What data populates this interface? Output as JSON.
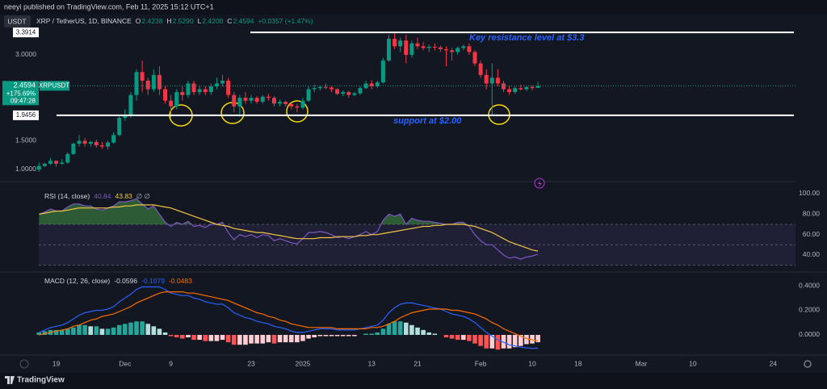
{
  "header": {
    "publisher": "neeyi published on TradingView.com, Feb 11, 2025 15:12 UTC+1",
    "currency": "USDT",
    "footer": "TradingView"
  },
  "chart_data": [
    {
      "type": "candlestick",
      "title": "XRP / TetherUS, 1D, BINANCE",
      "ohlc_legend": [
        [
          "O",
          "2.4238"
        ],
        [
          "H",
          "2.5290"
        ],
        [
          "L",
          "2.4200"
        ],
        [
          "C",
          "2.4594"
        ]
      ],
      "change": "+0.0357 (+1.47%)",
      "symbol": "XRPUSDT",
      "tag_change": "+175.69%",
      "tag_countdown": "09:47:28",
      "annotations": [
        "Key resistance level at $3.3",
        "support at $2.00"
      ],
      "levels": [
        3.3914,
        1.9456
      ],
      "up_color": "#089981",
      "down_color": "#f23645",
      "xlim": [
        -21.8,
        116.9
      ],
      "xticks": [
        {
          "value": -12,
          "label": "19"
        },
        {
          "value": 0,
          "label": "Dec"
        },
        {
          "value": 8,
          "label": "9"
        },
        {
          "value": 22,
          "label": "23"
        },
        {
          "value": 31,
          "label": "2025"
        },
        {
          "value": 43,
          "label": "13"
        },
        {
          "value": 51,
          "label": "21"
        },
        {
          "value": 62,
          "label": "Feb"
        },
        {
          "value": 71,
          "label": "10"
        },
        {
          "value": 79,
          "label": "18"
        },
        {
          "value": 90,
          "label": "Mar"
        },
        {
          "value": 99,
          "label": "10"
        },
        {
          "value": 113,
          "label": "24"
        }
      ],
      "ylim": [
        0.887,
        3.563
      ],
      "yticks": [
        {
          "value": 3,
          "label": "3.0000"
        },
        {
          "value": 1.5,
          "label": "1.5000"
        },
        {
          "value": 1,
          "label": "1.0000"
        }
      ],
      "x": [
        -15,
        -14,
        -13,
        -12,
        -11,
        -10,
        -9,
        -8,
        -7,
        -6,
        -5,
        -4,
        -3,
        -2,
        -1,
        0,
        1,
        2,
        3,
        4,
        5,
        6,
        7,
        8,
        9,
        10,
        11,
        12,
        13,
        14,
        15,
        16,
        17,
        18,
        19,
        20,
        21,
        22,
        23,
        24,
        25,
        26,
        27,
        28,
        29,
        30,
        31,
        32,
        33,
        34,
        35,
        36,
        37,
        38,
        39,
        40,
        41,
        42,
        43,
        44,
        45,
        46,
        47,
        48,
        49,
        50,
        51,
        52,
        53,
        54,
        55,
        56,
        57,
        58,
        59,
        60,
        61,
        62,
        63,
        64,
        65,
        66,
        67,
        68,
        69,
        70,
        71,
        72
      ],
      "ohlc": [
        [
          1.0,
          1.12,
          0.96,
          1.06
        ],
        [
          1.06,
          1.12,
          1.04,
          1.1
        ],
        [
          1.1,
          1.2,
          1.08,
          1.15
        ],
        [
          1.15,
          1.16,
          1.05,
          1.1
        ],
        [
          1.1,
          1.18,
          1.08,
          1.12
        ],
        [
          1.12,
          1.3,
          1.1,
          1.27
        ],
        [
          1.27,
          1.47,
          1.25,
          1.45
        ],
        [
          1.45,
          1.6,
          1.4,
          1.5
        ],
        [
          1.5,
          1.55,
          1.4,
          1.45
        ],
        [
          1.45,
          1.5,
          1.4,
          1.48
        ],
        [
          1.48,
          1.52,
          1.38,
          1.42
        ],
        [
          1.42,
          1.48,
          1.36,
          1.4
        ],
        [
          1.4,
          1.5,
          1.35,
          1.47
        ],
        [
          1.47,
          1.65,
          1.45,
          1.6
        ],
        [
          1.6,
          1.95,
          1.58,
          1.9
        ],
        [
          1.9,
          2.05,
          1.85,
          1.95
        ],
        [
          1.95,
          2.35,
          1.9,
          2.3
        ],
        [
          2.3,
          2.75,
          2.2,
          2.7
        ],
        [
          2.7,
          2.9,
          2.35,
          2.55
        ],
        [
          2.55,
          2.6,
          2.3,
          2.4
        ],
        [
          2.4,
          2.75,
          2.35,
          2.65
        ],
        [
          2.65,
          2.8,
          2.3,
          2.4
        ],
        [
          2.4,
          2.45,
          2.15,
          2.2
        ],
        [
          2.2,
          2.3,
          1.9,
          2.1
        ],
        [
          2.1,
          2.4,
          2.05,
          2.35
        ],
        [
          2.35,
          2.45,
          2.2,
          2.3
        ],
        [
          2.3,
          2.55,
          2.25,
          2.5
        ],
        [
          2.5,
          2.55,
          2.3,
          2.35
        ],
        [
          2.35,
          2.45,
          2.3,
          2.4
        ],
        [
          2.4,
          2.45,
          2.3,
          2.35
        ],
        [
          2.35,
          2.5,
          2.3,
          2.45
        ],
        [
          2.45,
          2.6,
          2.4,
          2.5
        ],
        [
          2.5,
          2.65,
          2.45,
          2.55
        ],
        [
          2.55,
          2.6,
          2.25,
          2.3
        ],
        [
          2.3,
          2.35,
          2.0,
          2.1
        ],
        [
          2.1,
          2.3,
          1.92,
          2.25
        ],
        [
          2.25,
          2.35,
          2.15,
          2.2
        ],
        [
          2.2,
          2.3,
          2.15,
          2.25
        ],
        [
          2.25,
          2.28,
          2.15,
          2.18
        ],
        [
          2.18,
          2.3,
          2.15,
          2.27
        ],
        [
          2.27,
          2.32,
          2.2,
          2.25
        ],
        [
          2.25,
          2.28,
          2.1,
          2.15
        ],
        [
          2.15,
          2.22,
          2.1,
          2.18
        ],
        [
          2.18,
          2.2,
          2.1,
          2.14
        ],
        [
          2.14,
          2.16,
          2.05,
          2.1
        ],
        [
          2.1,
          2.15,
          2.0,
          2.08
        ],
        [
          2.08,
          2.25,
          2.05,
          2.2
        ],
        [
          2.2,
          2.45,
          2.18,
          2.4
        ],
        [
          2.4,
          2.48,
          2.35,
          2.42
        ],
        [
          2.42,
          2.46,
          2.38,
          2.44
        ],
        [
          2.44,
          2.5,
          2.4,
          2.43
        ],
        [
          2.43,
          2.45,
          2.35,
          2.4
        ],
        [
          2.4,
          2.42,
          2.3,
          2.32
        ],
        [
          2.32,
          2.38,
          2.28,
          2.35
        ],
        [
          2.35,
          2.37,
          2.25,
          2.3
        ],
        [
          2.3,
          2.35,
          2.28,
          2.33
        ],
        [
          2.33,
          2.45,
          2.3,
          2.42
        ],
        [
          2.42,
          2.55,
          2.4,
          2.5
        ],
        [
          2.5,
          2.56,
          2.4,
          2.45
        ],
        [
          2.45,
          2.55,
          2.42,
          2.52
        ],
        [
          2.52,
          2.95,
          2.5,
          2.9
        ],
        [
          2.9,
          3.35,
          2.88,
          3.28
        ],
        [
          3.28,
          3.4,
          3.1,
          3.15
        ],
        [
          3.15,
          3.3,
          3.05,
          3.25
        ],
        [
          3.25,
          3.35,
          2.85,
          3.0
        ],
        [
          3.0,
          3.25,
          2.95,
          3.2
        ],
        [
          3.2,
          3.3,
          3.1,
          3.15
        ],
        [
          3.15,
          3.22,
          3.08,
          3.12
        ],
        [
          3.12,
          3.18,
          3.05,
          3.14
        ],
        [
          3.14,
          3.2,
          3.08,
          3.13
        ],
        [
          3.13,
          3.16,
          3.05,
          3.1
        ],
        [
          3.1,
          3.15,
          2.8,
          3.08
        ],
        [
          3.08,
          3.12,
          2.9,
          3.05
        ],
        [
          3.05,
          3.15,
          3.0,
          3.12
        ],
        [
          3.12,
          3.18,
          3.08,
          3.15
        ],
        [
          3.15,
          3.2,
          3.0,
          3.05
        ],
        [
          3.05,
          3.08,
          2.8,
          2.85
        ],
        [
          2.85,
          2.9,
          2.6,
          2.65
        ],
        [
          2.65,
          2.75,
          2.4,
          2.5
        ],
        [
          2.5,
          2.85,
          1.95,
          2.6
        ],
        [
          2.6,
          2.75,
          2.45,
          2.5
        ],
        [
          2.5,
          2.55,
          2.35,
          2.4
        ],
        [
          2.4,
          2.45,
          2.3,
          2.35
        ],
        [
          2.35,
          2.45,
          2.32,
          2.42
        ],
        [
          2.42,
          2.48,
          2.38,
          2.4
        ],
        [
          2.4,
          2.45,
          2.37,
          2.44
        ],
        [
          2.44,
          2.47,
          2.38,
          2.42
        ],
        [
          2.4238,
          2.529,
          2.42,
          2.4594
        ]
      ]
    },
    {
      "type": "line",
      "title": "RSI (14, close)",
      "na_label": "∅ ∅",
      "ylim": [
        25,
        106.3
      ],
      "yticks": [
        {
          "value": 100,
          "label": "100.00"
        },
        {
          "value": 80,
          "label": "80.00"
        },
        {
          "value": 60,
          "label": "60.00"
        },
        {
          "value": 40,
          "label": "40.00"
        }
      ],
      "levels": [
        70,
        50,
        30
      ],
      "band_color": "#7e57c2",
      "overbought_color": "#4caf50",
      "series": [
        {
          "color": "#7e57c2",
          "values": [
            80,
            82,
            85,
            83,
            83,
            87,
            90,
            90,
            88,
            88,
            85,
            84,
            86,
            88,
            92,
            92,
            93,
            95,
            90,
            85,
            88,
            80,
            72,
            68,
            72,
            70,
            73,
            68,
            69,
            67,
            70,
            70,
            72,
            62,
            55,
            60,
            58,
            60,
            57,
            60,
            59,
            54,
            56,
            54,
            52,
            51,
            56,
            62,
            62,
            63,
            62,
            60,
            57,
            58,
            56,
            58,
            60,
            63,
            60,
            63,
            74,
            80,
            78,
            80,
            70,
            76,
            74,
            73,
            73,
            72,
            71,
            70,
            70,
            72,
            72,
            68,
            60,
            54,
            50,
            50,
            45,
            40,
            37,
            38,
            36,
            38,
            39,
            40.84
          ]
        },
        {
          "color": "#f5c542",
          "values": [
            80,
            81,
            82,
            83,
            83,
            84,
            85,
            86,
            86,
            86,
            86,
            86,
            86,
            87,
            87,
            88,
            88,
            89,
            89,
            89,
            89,
            88,
            87,
            86,
            84,
            82,
            80,
            78,
            76,
            74,
            72,
            70,
            69,
            68,
            66,
            65,
            64,
            63,
            62,
            62,
            61,
            60,
            59,
            58,
            57,
            56,
            56,
            56,
            56,
            57,
            57,
            57,
            58,
            58,
            58,
            58,
            59,
            59,
            60,
            60,
            61,
            62,
            63,
            64,
            65,
            66,
            67,
            68,
            68,
            69,
            69,
            70,
            70,
            70,
            70,
            69,
            68,
            66,
            64,
            62,
            59,
            56,
            53,
            51,
            49,
            47,
            45,
            43.83
          ]
        }
      ]
    },
    {
      "type": "macd",
      "title": "MACD (12, 26, close)",
      "ylim": [
        -0.138,
        0.492
      ],
      "yticks": [
        {
          "value": 0.4,
          "label": "0.4000"
        },
        {
          "value": 0.2,
          "label": "0.2000"
        },
        {
          "value": 0,
          "label": "0.0000"
        }
      ],
      "histogram_colors": [
        "#26a69a",
        "#b2dfdb",
        "#ff5252",
        "#ffcdd2"
      ],
      "histogram": [
        0.02,
        0.03,
        0.04,
        0.04,
        0.04,
        0.05,
        0.06,
        0.08,
        0.08,
        0.07,
        0.07,
        0.05,
        0.05,
        0.06,
        0.08,
        0.09,
        0.1,
        0.11,
        0.11,
        0.09,
        0.07,
        0.05,
        0.02,
        -0.01,
        -0.02,
        -0.03,
        -0.02,
        -0.04,
        -0.04,
        -0.05,
        -0.05,
        -0.05,
        -0.04,
        -0.06,
        -0.08,
        -0.08,
        -0.08,
        -0.07,
        -0.07,
        -0.07,
        -0.06,
        -0.07,
        -0.06,
        -0.06,
        -0.06,
        -0.06,
        -0.05,
        -0.03,
        -0.02,
        -0.01,
        -0.01,
        -0.01,
        -0.01,
        -0.01,
        -0.01,
        -0.01,
        0,
        0.01,
        0.01,
        0.02,
        0.05,
        0.09,
        0.11,
        0.11,
        0.1,
        0.08,
        0.06,
        0.04,
        0.02,
        0.01,
        0,
        -0.02,
        -0.03,
        -0.04,
        -0.04,
        -0.05,
        -0.07,
        -0.09,
        -0.11,
        -0.11,
        -0.12,
        -0.11,
        -0.11,
        -0.1,
        -0.09,
        -0.075,
        -0.07,
        -0.0596
      ],
      "series": [
        {
          "color": "#2962ff",
          "values": [
            0.02,
            0.04,
            0.06,
            0.07,
            0.08,
            0.1,
            0.13,
            0.16,
            0.18,
            0.19,
            0.2,
            0.2,
            0.21,
            0.23,
            0.27,
            0.3,
            0.33,
            0.37,
            0.39,
            0.39,
            0.39,
            0.39,
            0.37,
            0.34,
            0.33,
            0.32,
            0.32,
            0.3,
            0.29,
            0.27,
            0.26,
            0.25,
            0.25,
            0.22,
            0.18,
            0.16,
            0.14,
            0.13,
            0.11,
            0.1,
            0.09,
            0.07,
            0.06,
            0.05,
            0.03,
            0.02,
            0.02,
            0.03,
            0.04,
            0.05,
            0.05,
            0.05,
            0.04,
            0.04,
            0.04,
            0.04,
            0.05,
            0.06,
            0.07,
            0.08,
            0.12,
            0.18,
            0.22,
            0.25,
            0.26,
            0.26,
            0.25,
            0.24,
            0.23,
            0.22,
            0.21,
            0.19,
            0.17,
            0.16,
            0.15,
            0.13,
            0.1,
            0.06,
            0.02,
            -0.01,
            -0.04,
            -0.06,
            -0.08,
            -0.09,
            -0.1,
            -0.105,
            -0.11,
            -0.1079
          ]
        },
        {
          "color": "#ff6d00",
          "values": [
            0,
            0.01,
            0.02,
            0.03,
            0.04,
            0.05,
            0.07,
            0.08,
            0.1,
            0.12,
            0.13,
            0.15,
            0.16,
            0.17,
            0.19,
            0.21,
            0.23,
            0.26,
            0.28,
            0.3,
            0.32,
            0.34,
            0.35,
            0.35,
            0.35,
            0.35,
            0.34,
            0.34,
            0.33,
            0.32,
            0.31,
            0.3,
            0.29,
            0.28,
            0.26,
            0.24,
            0.22,
            0.2,
            0.18,
            0.17,
            0.15,
            0.14,
            0.12,
            0.11,
            0.09,
            0.08,
            0.07,
            0.06,
            0.06,
            0.06,
            0.06,
            0.06,
            0.05,
            0.05,
            0.05,
            0.05,
            0.05,
            0.05,
            0.06,
            0.06,
            0.07,
            0.09,
            0.11,
            0.14,
            0.16,
            0.18,
            0.19,
            0.2,
            0.21,
            0.21,
            0.21,
            0.21,
            0.2,
            0.2,
            0.19,
            0.18,
            0.17,
            0.15,
            0.13,
            0.1,
            0.08,
            0.05,
            0.03,
            0.01,
            -0.01,
            -0.03,
            -0.04,
            -0.0483
          ]
        }
      ]
    }
  ]
}
